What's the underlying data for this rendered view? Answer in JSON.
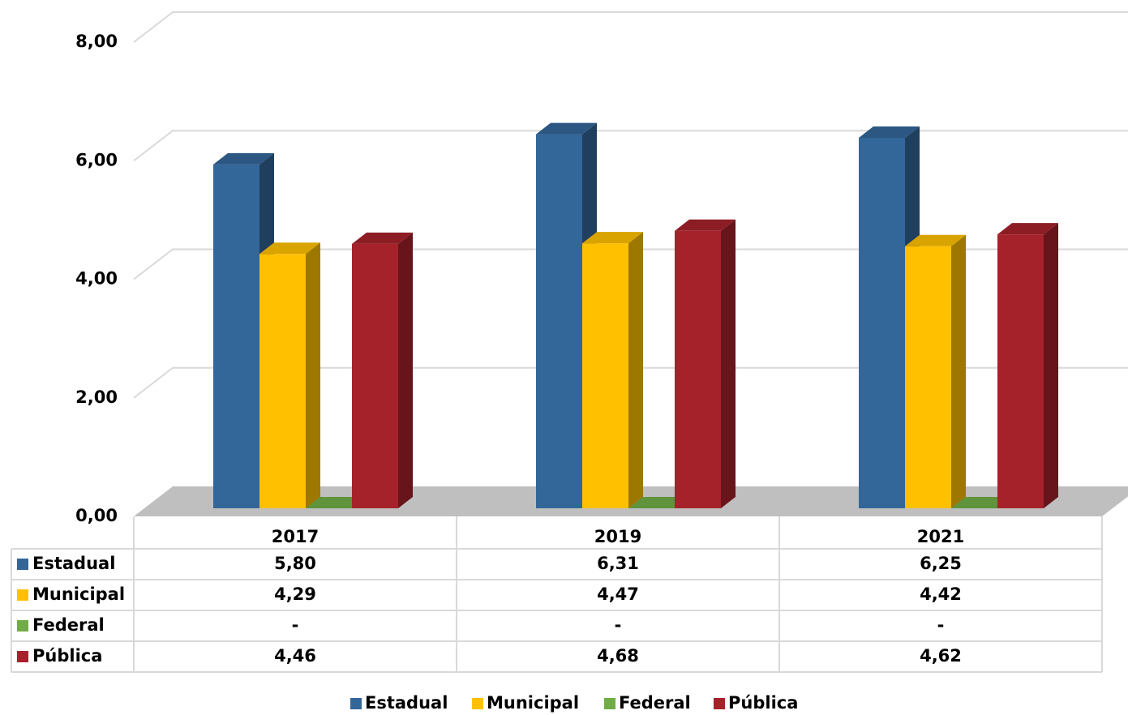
{
  "chart_data": {
    "type": "bar3d",
    "categories": [
      "2017",
      "2019",
      "2021"
    ],
    "series": [
      {
        "name": "Estadual",
        "color": "#336699",
        "values": [
          5.8,
          6.31,
          6.25
        ],
        "value_labels": [
          "5,80",
          "6,31",
          "6,25"
        ]
      },
      {
        "name": "Municipal",
        "color": "#ffc000",
        "values": [
          4.29,
          4.47,
          4.42
        ],
        "value_labels": [
          "4,29",
          "4,47",
          "4,42"
        ]
      },
      {
        "name": "Federal",
        "color": "#70ad47",
        "values": [
          0,
          0,
          0
        ],
        "value_labels": [
          "-",
          "-",
          "-"
        ]
      },
      {
        "name": "Pública",
        "color": "#a6222a",
        "values": [
          4.46,
          4.68,
          4.62
        ],
        "value_labels": [
          "4,46",
          "4,68",
          "4,62"
        ]
      }
    ],
    "ylim": [
      0,
      8
    ],
    "yticks": [
      {
        "value": 0,
        "label": "0,00"
      },
      {
        "value": 2,
        "label": "2,00"
      },
      {
        "value": 4,
        "label": "4,00"
      },
      {
        "value": 6,
        "label": "6,00"
      },
      {
        "value": 8,
        "label": "8,00"
      }
    ],
    "grid": true,
    "data_table": true,
    "legend": "bottom"
  }
}
